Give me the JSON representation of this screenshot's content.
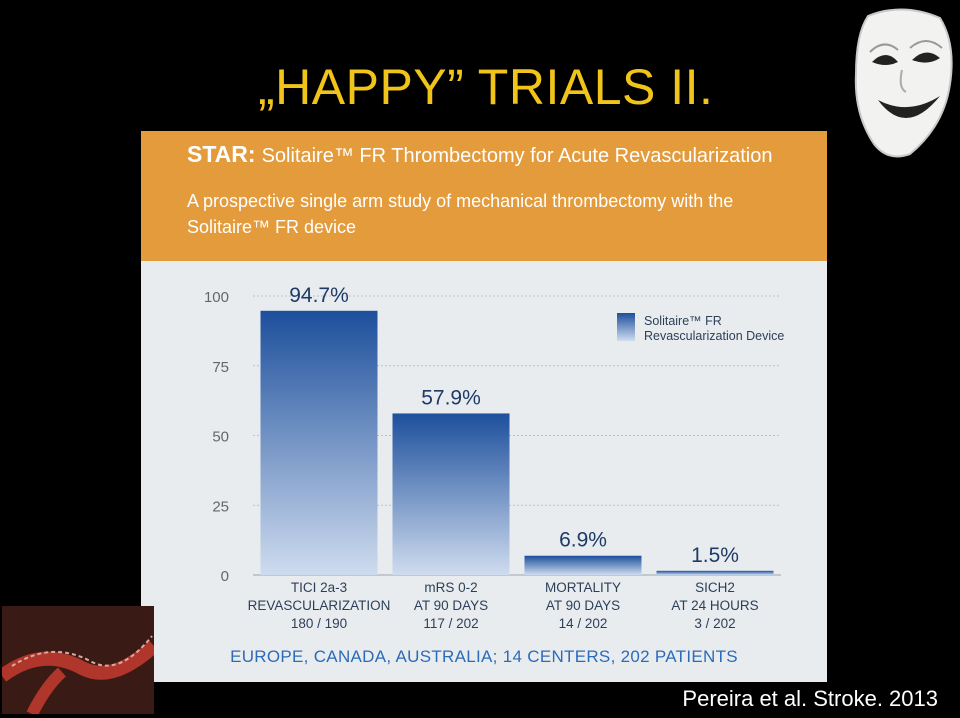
{
  "slide": {
    "title": "„HAPPY” TRIALS II.",
    "citation": "Pereira et al. Stroke. 2013"
  },
  "banner": {
    "star_label": "STAR:",
    "title": "Solitaire™ FR Thrombectomy for Acute Revascularization",
    "subtitle": "A prospective single arm study of mechanical thrombectomy with the Solitaire™ FR device"
  },
  "footer": "EUROPE, CANADA, AUSTRALIA; 14 CENTERS, 202 PATIENTS",
  "colors": {
    "title": "#f0c419",
    "banner": "#e39b3c",
    "bar_top": "#1d4f9c",
    "bar_bottom": "#cfdcef",
    "footer_text": "#2b6bb8"
  },
  "chart_data": {
    "type": "bar",
    "categories": [
      "TICI 2a-3 REVASCULARIZATION",
      "mRS 0-2 AT 90 DAYS",
      "MORTALITY AT 90 DAYS",
      "SICH2 AT 24 HOURS"
    ],
    "category_lines": [
      [
        "TICI 2a-3",
        "REVASCULARIZATION",
        "180 / 190"
      ],
      [
        "mRS 0-2",
        "AT 90 DAYS",
        "117 / 202"
      ],
      [
        "MORTALITY",
        "AT 90 DAYS",
        "14 / 202"
      ],
      [
        "SICH2",
        "AT 24 HOURS",
        "3 / 202"
      ]
    ],
    "values": [
      94.7,
      57.9,
      6.9,
      1.5
    ],
    "data_labels": [
      "94.7%",
      "57.9%",
      "6.9%",
      "1.5%"
    ],
    "series": [
      {
        "name": "Solitaire™ FR Revascularization Device",
        "values": [
          94.7,
          57.9,
          6.9,
          1.5
        ]
      }
    ],
    "yticks": [
      "0",
      "25",
      "50",
      "75",
      "100"
    ],
    "ylim": [
      0,
      100
    ],
    "grid": true,
    "legend": "top-right"
  }
}
